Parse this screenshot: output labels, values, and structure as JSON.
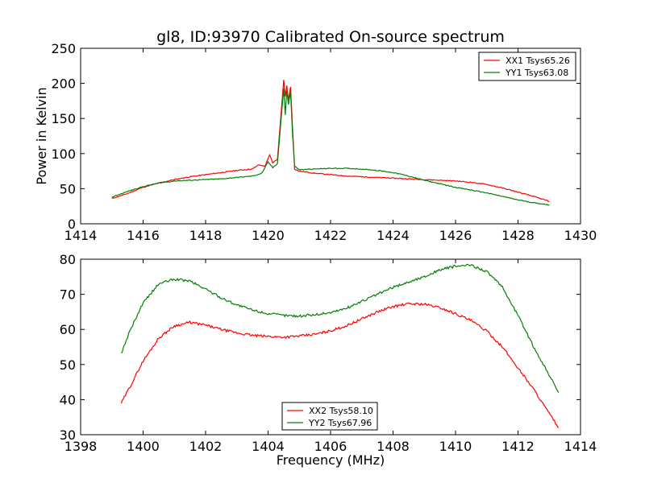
{
  "title": "gl8, ID:93970 Calibrated On-source spectrum",
  "chart_data": [
    {
      "type": "line",
      "xlabel": "",
      "ylabel": "Power in Kelvin",
      "xlim": [
        1414,
        1430
      ],
      "ylim": [
        0,
        250
      ],
      "xticks": [
        1414,
        1416,
        1418,
        1420,
        1422,
        1424,
        1426,
        1428,
        1430
      ],
      "yticks": [
        0,
        50,
        100,
        150,
        200,
        250
      ],
      "legend_position": "top-right",
      "series": [
        {
          "name": "XX1 Tsys65.26",
          "color": "#ff0000",
          "x": [
            1415.0,
            1415.5,
            1416.0,
            1416.5,
            1417.0,
            1417.5,
            1418.0,
            1418.5,
            1419.0,
            1419.5,
            1419.7,
            1419.9,
            1420.05,
            1420.15,
            1420.3,
            1420.4,
            1420.5,
            1420.55,
            1420.6,
            1420.65,
            1420.72,
            1420.78,
            1420.85,
            1421.0,
            1421.5,
            1422.0,
            1422.5,
            1423.0,
            1423.5,
            1424.0,
            1424.5,
            1425.0,
            1425.5,
            1426.0,
            1426.5,
            1427.0,
            1427.5,
            1428.0,
            1428.5,
            1429.0
          ],
          "y": [
            36,
            43,
            52,
            58,
            63,
            67,
            70,
            73,
            76,
            78,
            84,
            82,
            98,
            87,
            92,
            148,
            205,
            182,
            197,
            176,
            195,
            140,
            78,
            75,
            72,
            70,
            68,
            67,
            66,
            65,
            64,
            63,
            62,
            61,
            59,
            56,
            51,
            45,
            39,
            32
          ]
        },
        {
          "name": "YY1 Tsys63.08",
          "color": "#008000",
          "x": [
            1415.0,
            1415.5,
            1416.0,
            1416.5,
            1417.0,
            1417.5,
            1418.0,
            1418.5,
            1419.0,
            1419.5,
            1419.8,
            1420.0,
            1420.15,
            1420.3,
            1420.4,
            1420.5,
            1420.55,
            1420.6,
            1420.65,
            1420.72,
            1420.78,
            1420.85,
            1421.0,
            1421.5,
            1422.0,
            1422.5,
            1423.0,
            1423.5,
            1424.0,
            1424.5,
            1425.0,
            1425.5,
            1426.0,
            1426.5,
            1427.0,
            1427.5,
            1428.0,
            1428.5,
            1429.0
          ],
          "y": [
            38,
            46,
            53,
            58,
            61,
            62,
            63,
            64,
            66,
            68,
            72,
            88,
            80,
            86,
            140,
            193,
            155,
            190,
            170,
            188,
            130,
            82,
            77,
            78,
            79,
            79,
            78,
            76,
            73,
            68,
            62,
            57,
            52,
            48,
            44,
            39,
            34,
            30,
            27
          ]
        }
      ]
    },
    {
      "type": "line",
      "xlabel": "Frequency (MHz)",
      "ylabel": "",
      "xlim": [
        1398,
        1414
      ],
      "ylim": [
        30,
        80
      ],
      "xticks": [
        1398,
        1400,
        1402,
        1404,
        1406,
        1408,
        1410,
        1412,
        1414
      ],
      "yticks": [
        30,
        40,
        50,
        60,
        70,
        80
      ],
      "legend_position": "bottom-center",
      "series": [
        {
          "name": "XX2 Tsys58.10",
          "color": "#ff0000",
          "x": [
            1399.3,
            1399.6,
            1400.0,
            1400.5,
            1401.0,
            1401.5,
            1402.0,
            1402.5,
            1403.0,
            1403.5,
            1404.0,
            1404.5,
            1405.0,
            1405.5,
            1406.0,
            1406.5,
            1407.0,
            1407.5,
            1408.0,
            1408.5,
            1409.0,
            1409.5,
            1410.0,
            1410.5,
            1411.0,
            1411.5,
            1412.0,
            1412.5,
            1413.0,
            1413.3
          ],
          "y": [
            39,
            44,
            51,
            57.5,
            61,
            62,
            61.2,
            60,
            59,
            58.3,
            58,
            57.8,
            58.1,
            58.6,
            59.6,
            61,
            63,
            65,
            66.5,
            67.3,
            67.2,
            66.2,
            64.5,
            62.5,
            59.5,
            55,
            49,
            43,
            36,
            32
          ]
        },
        {
          "name": "YY2 Tsys67.96",
          "color": "#008000",
          "x": [
            1399.3,
            1399.6,
            1400.0,
            1400.5,
            1401.0,
            1401.5,
            1402.0,
            1402.5,
            1403.0,
            1403.5,
            1404.0,
            1404.5,
            1405.0,
            1405.5,
            1406.0,
            1406.5,
            1407.0,
            1407.5,
            1408.0,
            1408.5,
            1409.0,
            1409.5,
            1410.0,
            1410.5,
            1411.0,
            1411.5,
            1412.0,
            1412.5,
            1413.0,
            1413.3
          ],
          "y": [
            53,
            60,
            67.5,
            73,
            74.3,
            73.8,
            71.5,
            69,
            67,
            65.5,
            64.5,
            64,
            63.8,
            64.2,
            64.8,
            66,
            68,
            70,
            72,
            73.5,
            75,
            77,
            78,
            78.3,
            76.5,
            72,
            64,
            55,
            47,
            42
          ]
        }
      ]
    }
  ]
}
